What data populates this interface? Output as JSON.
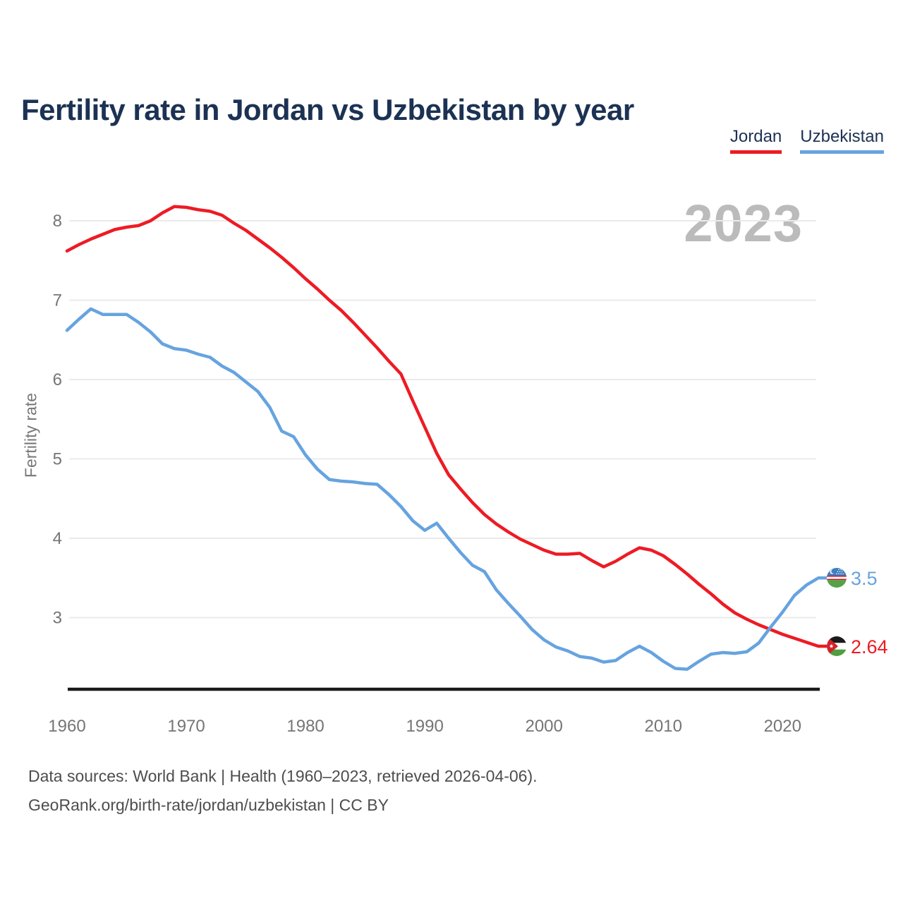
{
  "title": "Fertility rate in Jordan vs Uzbekistan by year",
  "watermark": "2023",
  "y_axis_label": "Fertility rate",
  "legend": {
    "jordan": "Jordan",
    "uzbekistan": "Uzbekistan"
  },
  "end_labels": {
    "uzbekistan_value": "3.5",
    "jordan_value": "2.64"
  },
  "footer": {
    "line1": "Data sources: World Bank | Health (1960–2023, retrieved 2026-04-06).",
    "line2": "GeoRank.org/birth-rate/jordan/uzbekistan | CC BY"
  },
  "colors": {
    "jordan": "#ED1B24",
    "uzbekistan": "#66A3E0",
    "title": "#1C3254",
    "grid": "#EBEBEB",
    "tick": "#757575",
    "axis": "#1A1A1A",
    "watermark": "#BBBBBB"
  },
  "chart_data": {
    "type": "line",
    "title": "Fertility rate in Jordan vs Uzbekistan by year",
    "xlabel": "",
    "ylabel": "Fertility rate",
    "grid": "horizontal",
    "legend_position": "top-right",
    "xlim": [
      1960,
      2023
    ],
    "ylim": [
      2.1,
      8.5
    ],
    "xticks": [
      1960,
      1970,
      1980,
      1990,
      2000,
      2010,
      2020
    ],
    "yticks": [
      3,
      4,
      5,
      6,
      7,
      8
    ],
    "x": [
      1960,
      1961,
      1962,
      1963,
      1964,
      1965,
      1966,
      1967,
      1968,
      1969,
      1970,
      1971,
      1972,
      1973,
      1974,
      1975,
      1976,
      1977,
      1978,
      1979,
      1980,
      1981,
      1982,
      1983,
      1984,
      1985,
      1986,
      1987,
      1988,
      1989,
      1990,
      1991,
      1992,
      1993,
      1994,
      1995,
      1996,
      1997,
      1998,
      1999,
      2000,
      2001,
      2002,
      2003,
      2004,
      2005,
      2006,
      2007,
      2008,
      2009,
      2010,
      2011,
      2012,
      2013,
      2014,
      2015,
      2016,
      2017,
      2018,
      2019,
      2020,
      2021,
      2022,
      2023
    ],
    "series": [
      {
        "name": "Jordan",
        "color": "#ED1B24",
        "values": [
          7.62,
          7.7,
          7.77,
          7.83,
          7.89,
          7.92,
          7.94,
          8.0,
          8.1,
          8.18,
          8.17,
          8.14,
          8.12,
          8.07,
          7.97,
          7.88,
          7.77,
          7.66,
          7.54,
          7.41,
          7.27,
          7.14,
          7.0,
          6.87,
          6.72,
          6.56,
          6.4,
          6.23,
          6.07,
          5.73,
          5.4,
          5.07,
          4.8,
          4.62,
          4.45,
          4.3,
          4.18,
          4.08,
          3.99,
          3.92,
          3.85,
          3.8,
          3.8,
          3.81,
          3.72,
          3.64,
          3.71,
          3.8,
          3.88,
          3.85,
          3.78,
          3.67,
          3.55,
          3.42,
          3.3,
          3.17,
          3.06,
          2.98,
          2.91,
          2.85,
          2.79,
          2.74,
          2.69,
          2.64
        ]
      },
      {
        "name": "Uzbekistan",
        "color": "#66A3E0",
        "values": [
          6.62,
          6.76,
          6.89,
          6.82,
          6.82,
          6.82,
          6.72,
          6.6,
          6.45,
          6.39,
          6.37,
          6.32,
          6.28,
          6.17,
          6.09,
          5.97,
          5.85,
          5.65,
          5.35,
          5.28,
          5.05,
          4.87,
          4.74,
          4.72,
          4.71,
          4.69,
          4.68,
          4.55,
          4.4,
          4.22,
          4.1,
          4.19,
          4.0,
          3.82,
          3.66,
          3.58,
          3.35,
          3.18,
          3.02,
          2.85,
          2.72,
          2.63,
          2.58,
          2.51,
          2.49,
          2.44,
          2.46,
          2.56,
          2.64,
          2.56,
          2.45,
          2.36,
          2.35,
          2.45,
          2.54,
          2.56,
          2.55,
          2.57,
          2.68,
          2.88,
          3.07,
          3.28,
          3.41,
          3.5
        ]
      }
    ],
    "end_labels": [
      {
        "series": "Uzbekistan",
        "value": 3.5
      },
      {
        "series": "Jordan",
        "value": 2.64
      }
    ]
  }
}
